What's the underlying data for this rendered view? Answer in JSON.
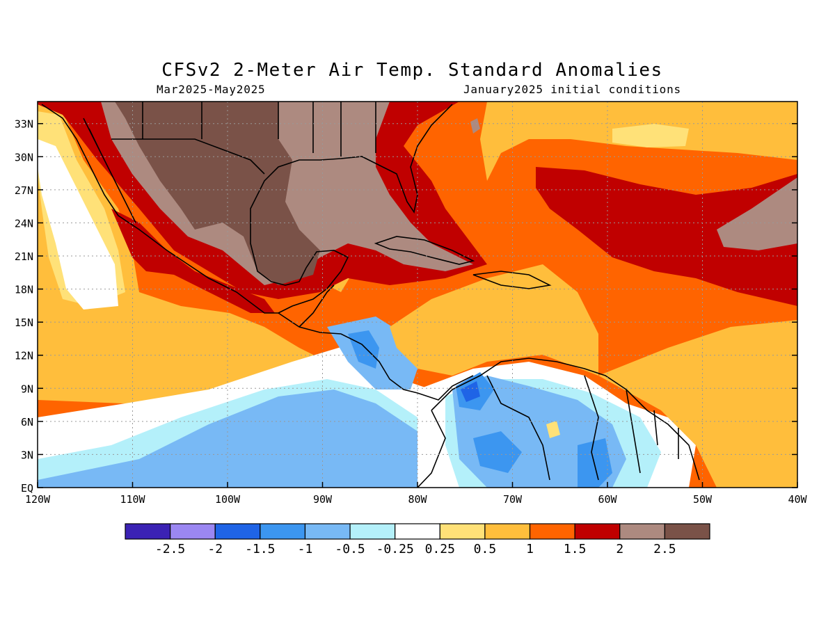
{
  "map": {
    "title": "CFSv2 2-Meter Air Temp. Standard Anomalies",
    "period": "Mar2025-May2025",
    "initial_conditions": "January2025 initial conditions",
    "projection": "lat-lon",
    "extent": {
      "lon": [
        -120,
        -40
      ],
      "lat": [
        0,
        35
      ]
    },
    "lon_ticks": [
      -120,
      -110,
      -100,
      -90,
      -80,
      -70,
      -60,
      -50,
      -40
    ],
    "lon_tick_labels": [
      "120W",
      "110W",
      "100W",
      "90W",
      "80W",
      "70W",
      "60W",
      "50W",
      "40W"
    ],
    "lat_ticks": [
      0,
      3,
      6,
      9,
      12,
      15,
      18,
      21,
      24,
      27,
      30,
      33
    ],
    "lat_tick_labels": [
      "EQ",
      "3N",
      "6N",
      "9N",
      "12N",
      "15N",
      "18N",
      "21N",
      "24N",
      "27N",
      "30N",
      "33N"
    ],
    "gridlines": true
  },
  "colorbar": {
    "colors": [
      "#3b22b4",
      "#9b87f2",
      "#1f64e6",
      "#3c96f0",
      "#78b9f5",
      "#b4f0fa",
      "#ffffff",
      "#ffe178",
      "#ffbe3c",
      "#ff6400",
      "#c00000",
      "#ad8a80",
      "#7a5248"
    ],
    "labels": [
      "-2.5",
      "-2",
      "-1.5",
      "-1",
      "-0.5",
      "-0.25",
      "0.25",
      "0.5",
      "1",
      "1.5",
      "2",
      "2.5"
    ]
  }
}
